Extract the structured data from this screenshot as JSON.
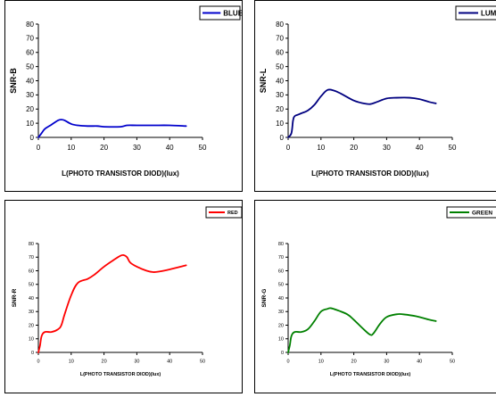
{
  "chart_data": [
    {
      "type": "line",
      "xlabel": "L(PHOTO TRANSISTOR DIOD)(lux)",
      "ylabel": "SNR-B",
      "xlim": [
        0,
        50
      ],
      "ylim": [
        0,
        80
      ],
      "xticks": [
        "0",
        "10",
        "20",
        "30",
        "40",
        "50"
      ],
      "yticks": [
        "0",
        "10",
        "20",
        "30",
        "40",
        "50",
        "60",
        "70",
        "80"
      ],
      "legend_position": "top-right",
      "series": [
        {
          "name": "BLUE",
          "color": "#0000cc",
          "x": [
            0,
            1,
            2,
            4,
            6,
            7,
            8,
            10,
            12,
            15,
            18,
            20,
            25,
            27,
            30,
            35,
            40,
            45
          ],
          "y": [
            0,
            3,
            6,
            9,
            12,
            12.5,
            12,
            9.5,
            8.5,
            8,
            8,
            7.5,
            7.5,
            8.5,
            8.5,
            8.5,
            8.5,
            8
          ]
        }
      ]
    },
    {
      "type": "line",
      "xlabel": "L(PHOTO TRANSISTOR DIOD)(lux)",
      "ylabel": "SNR-L",
      "xlim": [
        0,
        50
      ],
      "ylim": [
        0,
        80
      ],
      "xticks": [
        "0",
        "10",
        "20",
        "30",
        "40",
        "50"
      ],
      "yticks": [
        "0",
        "10",
        "20",
        "30",
        "40",
        "50",
        "60",
        "70",
        "80"
      ],
      "legend_position": "top-right",
      "series": [
        {
          "name": "LUMA",
          "color": "#000080",
          "x": [
            0,
            1,
            1.5,
            2,
            3,
            4,
            6,
            8,
            10,
            12,
            14,
            16,
            20,
            23,
            25,
            27,
            30,
            33,
            37,
            40,
            43,
            45
          ],
          "y": [
            0,
            3,
            12,
            15,
            16,
            17,
            19,
            23,
            29,
            33.5,
            33,
            31,
            26,
            24,
            23.5,
            25,
            27.5,
            28,
            28,
            27,
            25,
            24
          ]
        }
      ]
    },
    {
      "type": "line",
      "xlabel": "L(PHOTO TRANSISTOR DIOD)(lux)",
      "ylabel": "SNR-R",
      "xlim": [
        0,
        50
      ],
      "ylim": [
        0,
        80
      ],
      "xticks": [
        "0",
        "10",
        "20",
        "30",
        "40",
        "50"
      ],
      "yticks": [
        "0",
        "10",
        "20",
        "30",
        "40",
        "50",
        "60",
        "70",
        "80"
      ],
      "legend_position": "top-right",
      "series": [
        {
          "name": "RED",
          "color": "#ff0000",
          "x": [
            0,
            0.5,
            1,
            2,
            4,
            6,
            7,
            8,
            10,
            12,
            15,
            17,
            20,
            23,
            25,
            26,
            27,
            28,
            30,
            33,
            35,
            37,
            40,
            45
          ],
          "y": [
            0,
            5,
            12,
            15,
            15,
            17,
            20,
            28,
            42,
            51,
            54,
            57,
            63,
            68,
            71,
            71.5,
            70,
            66,
            63,
            60,
            59,
            59.5,
            61,
            64
          ]
        }
      ]
    },
    {
      "type": "line",
      "xlabel": "L(PHOTO TRANSISTOR DIOD)(lux)",
      "ylabel": "SNR-G",
      "xlim": [
        0,
        50
      ],
      "ylim": [
        0,
        80
      ],
      "xticks": [
        "0",
        "10",
        "20",
        "30",
        "40",
        "50"
      ],
      "yticks": [
        "0",
        "10",
        "20",
        "30",
        "40",
        "50",
        "60",
        "70",
        "80"
      ],
      "legend_position": "top-right",
      "series": [
        {
          "name": "GREEN",
          "color": "#008000",
          "x": [
            0,
            0.5,
            1,
            2,
            4,
            6,
            8,
            10,
            12,
            13,
            15,
            18,
            20,
            23,
            25,
            26,
            28,
            30,
            33,
            35,
            38,
            40,
            43,
            45
          ],
          "y": [
            0,
            5,
            12,
            15,
            15,
            17,
            23,
            30,
            32,
            32.5,
            31,
            28,
            24,
            17,
            13,
            14,
            21,
            26,
            28,
            28,
            27,
            26,
            24,
            23
          ]
        }
      ]
    }
  ]
}
